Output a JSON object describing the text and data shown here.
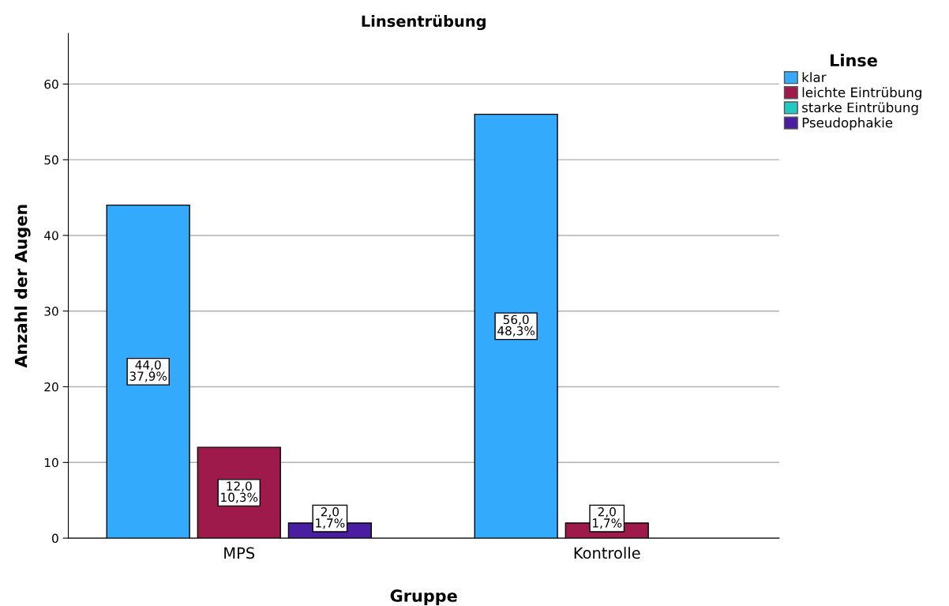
{
  "chart_data": {
    "type": "bar",
    "title": "Linsentrübung",
    "xlabel": "Gruppe",
    "ylabel": "Anzahl der Augen",
    "legend_title": "Linse",
    "categories": [
      "MPS",
      "Kontrolle"
    ],
    "series": [
      {
        "name": "klar",
        "color": "#33aafc",
        "values": [
          44,
          56
        ],
        "value_labels": [
          "44,0\n37,9%",
          "56,0\n48,3%"
        ]
      },
      {
        "name": "leichte Eintrübung",
        "color": "#9e1a4a",
        "values": [
          12,
          2
        ],
        "value_labels": [
          "12,0\n10,3%",
          "2,0\n1,7%"
        ]
      },
      {
        "name": "starke Eintrübung",
        "color": "#23c8c0",
        "values": [
          null,
          null
        ],
        "value_labels": [
          null,
          null
        ]
      },
      {
        "name": "Pseudophakie",
        "color": "#4a1ea0",
        "values": [
          2,
          null
        ],
        "value_labels": [
          "2,0\n1,7%",
          null
        ]
      }
    ],
    "ylim": [
      0,
      66.7
    ],
    "yticks": [
      0,
      10,
      20,
      30,
      40,
      50,
      60
    ],
    "grid": "y",
    "legend": "top right"
  }
}
